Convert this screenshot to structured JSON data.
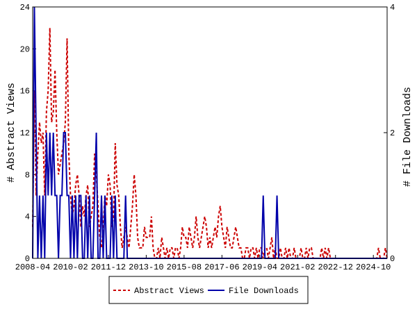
{
  "chart_data": {
    "type": "line",
    "y_label": "# Abstract Views",
    "y2_label": "# File Downloads",
    "x": [
      "2008-04",
      "2008-05",
      "2008-06",
      "2008-07",
      "2008-08",
      "2008-09",
      "2008-10",
      "2008-11",
      "2008-12",
      "2009-01",
      "2009-02",
      "2009-03",
      "2009-04",
      "2009-05",
      "2009-06",
      "2009-07",
      "2009-08",
      "2009-09",
      "2009-10",
      "2009-11",
      "2009-12",
      "2010-01",
      "2010-02",
      "2010-03",
      "2010-04",
      "2010-05",
      "2010-06",
      "2010-07",
      "2010-08",
      "2010-09",
      "2010-10",
      "2010-11",
      "2010-12",
      "2011-01",
      "2011-02",
      "2011-03",
      "2011-04",
      "2011-05",
      "2011-06",
      "2011-07",
      "2011-08",
      "2011-09",
      "2011-10",
      "2011-11",
      "2011-12",
      "2012-01",
      "2012-02",
      "2012-03",
      "2012-04",
      "2012-05",
      "2012-06",
      "2012-07",
      "2012-08",
      "2012-09",
      "2012-10",
      "2012-11",
      "2012-12",
      "2013-01",
      "2013-02",
      "2013-03",
      "2013-04",
      "2013-05",
      "2013-06",
      "2013-07",
      "2013-08",
      "2013-09",
      "2013-10",
      "2013-11",
      "2013-12",
      "2014-01",
      "2014-02",
      "2014-03",
      "2014-04",
      "2014-05",
      "2014-06",
      "2014-07",
      "2014-08",
      "2014-09",
      "2014-10",
      "2014-11",
      "2014-12",
      "2015-01",
      "2015-02",
      "2015-03",
      "2015-04",
      "2015-05",
      "2015-06",
      "2015-07",
      "2015-08",
      "2015-09",
      "2015-10",
      "2015-11",
      "2015-12",
      "2016-01",
      "2016-02",
      "2016-03",
      "2016-04",
      "2016-05",
      "2016-06",
      "2016-07",
      "2016-08",
      "2016-09",
      "2016-10",
      "2016-11",
      "2016-12",
      "2017-01",
      "2017-02",
      "2017-03",
      "2017-04",
      "2017-05",
      "2017-06",
      "2017-07",
      "2017-08",
      "2017-09",
      "2017-10",
      "2017-11",
      "2017-12",
      "2018-01",
      "2018-02",
      "2018-03",
      "2018-04",
      "2018-05",
      "2018-06",
      "2018-07",
      "2018-08",
      "2018-09",
      "2018-10",
      "2018-11",
      "2018-12",
      "2019-01",
      "2019-02",
      "2019-03",
      "2019-04",
      "2019-05",
      "2019-06",
      "2019-07",
      "2019-08",
      "2019-09",
      "2019-10",
      "2019-11",
      "2019-12",
      "2020-01",
      "2020-02",
      "2020-03",
      "2020-04",
      "2020-05",
      "2020-06",
      "2020-07",
      "2020-08",
      "2020-09",
      "2020-10",
      "2020-11",
      "2020-12",
      "2021-01",
      "2021-02",
      "2021-03",
      "2021-04",
      "2021-05",
      "2021-06",
      "2021-07",
      "2021-08",
      "2021-09",
      "2021-10",
      "2021-11",
      "2021-12",
      "2022-01",
      "2022-02",
      "2022-03",
      "2022-04",
      "2022-05",
      "2022-06",
      "2022-07",
      "2022-08",
      "2022-09",
      "2022-10",
      "2022-11",
      "2022-12",
      "2023-01",
      "2023-02",
      "2023-03",
      "2023-04",
      "2023-05",
      "2023-06",
      "2023-07",
      "2023-08",
      "2023-09",
      "2023-10",
      "2023-11",
      "2023-12",
      "2024-01",
      "2024-02",
      "2024-03",
      "2024-04",
      "2024-05",
      "2024-06",
      "2024-07",
      "2024-08",
      "2024-09",
      "2024-10",
      "2024-11",
      "2024-12",
      "2025-01",
      "2025-02",
      "2025-03",
      "2025-04",
      "2025-05",
      "2025-06"
    ],
    "xticks": [
      "2008-04",
      "2010-02",
      "2011-12",
      "2013-10",
      "2015-08",
      "2017-06",
      "2019-04",
      "2021-02",
      "2022-12",
      "2024-10"
    ],
    "ylim": [
      0,
      24
    ],
    "yticks": [
      0,
      4,
      8,
      12,
      16,
      20,
      24
    ],
    "y2lim": [
      0,
      4
    ],
    "y2ticks": [
      0,
      2,
      4
    ],
    "series": [
      {
        "name": "Abstract Views",
        "color": "#cc0000",
        "dash": true,
        "values": [
          3,
          16,
          6,
          10,
          13,
          11,
          12,
          6,
          14,
          16,
          22,
          13,
          14,
          18,
          12,
          8,
          9,
          10,
          11,
          13,
          21,
          10,
          6,
          4,
          5,
          7,
          8,
          6,
          3,
          5,
          4,
          6,
          7,
          3,
          4,
          5,
          10,
          8,
          5,
          2,
          1,
          3,
          6,
          5,
          8,
          7,
          3,
          4,
          11,
          7,
          6,
          3,
          1,
          2,
          3,
          2,
          1,
          3,
          5,
          8,
          6,
          2,
          1,
          1,
          1,
          3,
          2,
          2,
          2,
          4,
          1,
          0,
          0,
          1,
          0,
          2,
          1,
          0,
          1,
          0,
          1,
          1,
          0,
          1,
          1,
          0,
          1,
          3,
          2,
          2,
          1,
          3,
          2,
          1,
          2,
          4,
          2,
          1,
          2,
          3,
          4,
          3,
          1,
          2,
          1,
          2,
          3,
          2,
          4,
          5,
          3,
          2,
          1,
          3,
          2,
          1,
          1,
          2,
          3,
          2,
          1,
          1,
          0,
          0,
          1,
          1,
          0,
          1,
          1,
          0,
          1,
          0,
          1,
          1,
          0,
          1,
          1,
          0,
          1,
          2,
          0,
          1,
          0,
          0,
          1,
          0,
          0,
          1,
          0,
          1,
          0,
          0,
          1,
          0,
          0,
          0,
          1,
          0,
          0,
          1,
          0,
          1,
          1,
          0,
          0,
          0,
          0,
          0,
          1,
          0,
          1,
          0,
          1,
          0,
          0,
          0,
          0,
          0,
          0,
          0,
          0,
          0,
          0,
          0,
          0,
          0,
          0,
          0,
          0,
          0,
          0,
          0,
          0,
          0,
          0,
          0,
          0,
          0,
          0,
          0,
          0,
          1,
          0,
          0,
          0,
          1,
          0
        ]
      },
      {
        "name": "File Downloads",
        "color": "#0000aa",
        "axis": "y2",
        "values": [
          0,
          4,
          2,
          0,
          1,
          0,
          1,
          0,
          2,
          1,
          2,
          1,
          2,
          1,
          1,
          0,
          1,
          1,
          2,
          2,
          1,
          1,
          0,
          1,
          0,
          1,
          0,
          1,
          1,
          0,
          0,
          1,
          0,
          1,
          0,
          0,
          1,
          2,
          0,
          0,
          1,
          0,
          1,
          0,
          0,
          0,
          1,
          0,
          1,
          0,
          0,
          0,
          0,
          0,
          1,
          0,
          0,
          0,
          0,
          0,
          0,
          0,
          0,
          0,
          0,
          0,
          0,
          0,
          0,
          0,
          0,
          0,
          0,
          0,
          0,
          0,
          0,
          0,
          0,
          0,
          0,
          0,
          0,
          0,
          0,
          0,
          0,
          0,
          0,
          0,
          0,
          0,
          0,
          0,
          0,
          0,
          0,
          0,
          0,
          0,
          0,
          0,
          0,
          0,
          0,
          0,
          0,
          0,
          0,
          0,
          0,
          0,
          0,
          0,
          0,
          0,
          0,
          0,
          0,
          0,
          0,
          0,
          0,
          0,
          0,
          0,
          0,
          0,
          0,
          0,
          0,
          0,
          0,
          0,
          1,
          0,
          0,
          0,
          0,
          0,
          0,
          0,
          1,
          0,
          0,
          0,
          0,
          0,
          0,
          0,
          0,
          0,
          0,
          0,
          0,
          0,
          0,
          0,
          0,
          0,
          0,
          0,
          0,
          0,
          0,
          0,
          0,
          0,
          0,
          0,
          0,
          0,
          0,
          0,
          0,
          0,
          0,
          0,
          0,
          0,
          0,
          0,
          0,
          0,
          0,
          0,
          0,
          0,
          0,
          0,
          0,
          0,
          0,
          0,
          0,
          0,
          0,
          0,
          0,
          0,
          0,
          0,
          0,
          0,
          0,
          0,
          0
        ]
      }
    ]
  }
}
